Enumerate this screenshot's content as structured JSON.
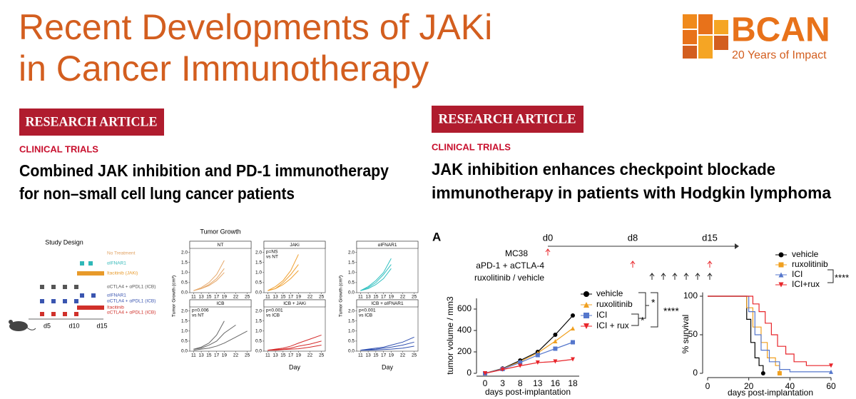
{
  "header": {
    "title_lines": [
      "Recent Developments of JAKi",
      "in Cancer Immunotherapy"
    ],
    "logo_name": "BCAN",
    "logo_tagline": "20 Years of Impact"
  },
  "articles": [
    {
      "badge": "RESEARCH ARTICLE",
      "section": "CLINICAL TRIALS",
      "title_lines": [
        "Combined JAK inhibition and PD-1 immunotherapy",
        "for non–small cell lung cancer patients"
      ]
    },
    {
      "badge": "RESEARCH ARTICLE",
      "section": "CLINICAL TRIALS",
      "title_lines": [
        "JAK inhibition enhances checkpoint blockade",
        "immunotherapy in patients with Hodgkin lymphoma"
      ]
    }
  ],
  "study_design": {
    "title": "Study Design",
    "labels": [
      {
        "text": "No Treatment",
        "color": "#e0a060"
      },
      {
        "text": "αIFNAR1",
        "color": "#2fb8b8"
      },
      {
        "text": "Itacitinib (JAKi)",
        "color": "#e89a2a"
      },
      {
        "text": "αCTLA4 + αPDL1 (ICB)",
        "color": "#555555"
      },
      {
        "text": "αIFNAR1",
        "color": "#3a55b0"
      },
      {
        "text": "αCTLA4 + αPDL1 (ICB)",
        "color": "#3a55b0"
      },
      {
        "text": "Itacitinib",
        "color": "#d0302a"
      },
      {
        "text": "αCTLA4 + αPDL1 (ICB)",
        "color": "#d0302a"
      }
    ],
    "day_labels": [
      "d5",
      "d10",
      "d15"
    ]
  },
  "tumor_growth": {
    "type": "line",
    "title": "Tumor Growth",
    "ylabel": "Tumor Growth (cm³)",
    "xlabel": "Day",
    "x": [
      11,
      13,
      15,
      17,
      19,
      22,
      25
    ],
    "xlim": [
      10,
      26
    ],
    "ylim": [
      0,
      2.2
    ],
    "xticks": [
      11,
      13,
      15,
      17,
      19,
      22,
      25
    ],
    "yticks": [
      {
        "value": 0,
        "label": "0.0"
      },
      {
        "value": 0.5,
        "label": "0.5"
      },
      {
        "value": 1,
        "label": "1.0"
      },
      {
        "value": 1.5,
        "label": "1.5"
      },
      {
        "value": 2,
        "label": "2.0"
      }
    ],
    "panels": [
      {
        "title": "NT",
        "color": "#e6a86a",
        "curves": [
          [
            0.1,
            0.25,
            0.5,
            0.9,
            1.6,
            null,
            null
          ],
          [
            0.1,
            0.2,
            0.4,
            0.7,
            1.2,
            null,
            null
          ],
          [
            0.1,
            0.2,
            0.35,
            0.6,
            1.0,
            null,
            null
          ]
        ]
      },
      {
        "title": "JAKi",
        "annotation": [
          "p=NS",
          "vs NT"
        ],
        "color": "#f0a030",
        "curves": [
          [
            0.1,
            0.3,
            0.6,
            1.1,
            1.9,
            null,
            null
          ],
          [
            0.1,
            0.2,
            0.5,
            0.9,
            1.4,
            null,
            null
          ],
          [
            0.1,
            0.2,
            0.4,
            0.7,
            1.1,
            null,
            null
          ]
        ]
      },
      {
        "title": "αIFNAR1",
        "color": "#30c0c0",
        "curves": [
          [
            0.1,
            0.3,
            0.6,
            1.0,
            1.7,
            null,
            null
          ],
          [
            0.1,
            0.25,
            0.5,
            0.9,
            1.4,
            null,
            null
          ],
          [
            0.1,
            0.2,
            0.4,
            0.7,
            1.2,
            null,
            null
          ]
        ]
      },
      {
        "title": "ICB",
        "annotation": [
          "p=0.006",
          "vs NT"
        ],
        "color": "#666666",
        "curves": [
          [
            0.1,
            0.2,
            0.4,
            0.8,
            1.5,
            null,
            null
          ],
          [
            0.1,
            0.15,
            0.3,
            0.5,
            0.9,
            1.3,
            null
          ],
          [
            0.05,
            0.1,
            0.15,
            0.25,
            0.4,
            0.7,
            1.0
          ]
        ]
      },
      {
        "title": "ICB + JAKi",
        "annotation": [
          "p<0.001",
          "vs ICB"
        ],
        "color": "#d42a2a",
        "curves": [
          [
            0.05,
            0.1,
            0.15,
            0.25,
            0.4,
            0.6,
            0.8
          ],
          [
            0.05,
            0.08,
            0.1,
            0.15,
            0.25,
            0.35,
            0.5
          ],
          [
            0.05,
            0.05,
            0.08,
            0.1,
            0.12,
            0.2,
            0.3
          ]
        ]
      },
      {
        "title": "ICB + αIFNAR1",
        "annotation": [
          "p<0.001",
          "vs ICB"
        ],
        "color": "#3050b0",
        "curves": [
          [
            0.05,
            0.1,
            0.15,
            0.2,
            0.3,
            0.45,
            0.7
          ],
          [
            0.05,
            0.08,
            0.1,
            0.15,
            0.2,
            0.3,
            0.45
          ],
          [
            0.05,
            0.05,
            0.06,
            0.08,
            0.1,
            0.15,
            0.25
          ]
        ]
      }
    ]
  },
  "timeline": {
    "panel_letter": "A",
    "days": [
      "d0",
      "d8",
      "d15"
    ],
    "rows": [
      "MC38",
      "aPD-1 + aCTLA-4",
      "ruxolitinib / vehicle"
    ]
  },
  "tumor_volume": {
    "type": "line",
    "ylabel": "tumor volume / mm3",
    "xlabel": "days post-implantation",
    "categories": [
      "0",
      "3",
      "8",
      "13",
      "16",
      "18"
    ],
    "ylim": [
      0,
      700
    ],
    "yticks": [
      0,
      200,
      400,
      600
    ],
    "series": [
      {
        "name": "vehicle",
        "color": "#000000",
        "marker": "circle",
        "values": [
          0,
          45,
          120,
          200,
          360,
          540
        ]
      },
      {
        "name": "ruxolitinib",
        "color": "#f0a020",
        "marker": "triangle-up",
        "values": [
          0,
          42,
          110,
          190,
          300,
          420
        ]
      },
      {
        "name": "ICI",
        "color": "#5577cc",
        "marker": "square",
        "values": [
          0,
          40,
          100,
          170,
          230,
          290
        ]
      },
      {
        "name": "ICI + rux",
        "color": "#e8252a",
        "marker": "triangle-down",
        "values": [
          0,
          35,
          70,
          100,
          110,
          130
        ]
      }
    ],
    "significance": [
      "*",
      "*",
      "****"
    ]
  },
  "survival": {
    "type": "line",
    "ylabel": "% survival",
    "xlabel": "days post-implantation",
    "xlim": [
      0,
      60
    ],
    "ylim": [
      0,
      105
    ],
    "xticks": [
      0,
      20,
      40,
      60
    ],
    "yticks": [
      0,
      50,
      100
    ],
    "series": [
      {
        "name": "vehicle",
        "color": "#000000",
        "marker": "circle",
        "x": [
          0,
          19,
          19,
          21,
          21,
          23,
          23,
          25,
          25,
          27,
          27
        ],
        "values": [
          100,
          100,
          70,
          70,
          40,
          40,
          20,
          20,
          10,
          10,
          0
        ]
      },
      {
        "name": "ruxolitinib",
        "color": "#f0a020",
        "marker": "square",
        "x": [
          0,
          19,
          19,
          22,
          22,
          26,
          26,
          29,
          29,
          33,
          33,
          35,
          35
        ],
        "values": [
          100,
          100,
          85,
          85,
          60,
          60,
          40,
          40,
          20,
          20,
          10,
          10,
          0
        ]
      },
      {
        "name": "ICI",
        "color": "#5577cc",
        "marker": "triangle-up",
        "x": [
          0,
          20,
          20,
          23,
          23,
          26,
          26,
          30,
          30,
          35,
          35,
          40,
          40,
          60
        ],
        "values": [
          100,
          100,
          80,
          80,
          50,
          50,
          30,
          30,
          15,
          15,
          5,
          5,
          2,
          2
        ]
      },
      {
        "name": "ICI+rux",
        "color": "#e8252a",
        "marker": "triangle-down",
        "x": [
          0,
          22,
          22,
          25,
          25,
          28,
          28,
          31,
          31,
          34,
          34,
          38,
          38,
          42,
          42,
          48,
          48,
          60
        ],
        "values": [
          100,
          100,
          90,
          90,
          80,
          80,
          65,
          65,
          50,
          50,
          35,
          35,
          25,
          25,
          15,
          15,
          10,
          10
        ]
      }
    ],
    "significance": "****"
  }
}
